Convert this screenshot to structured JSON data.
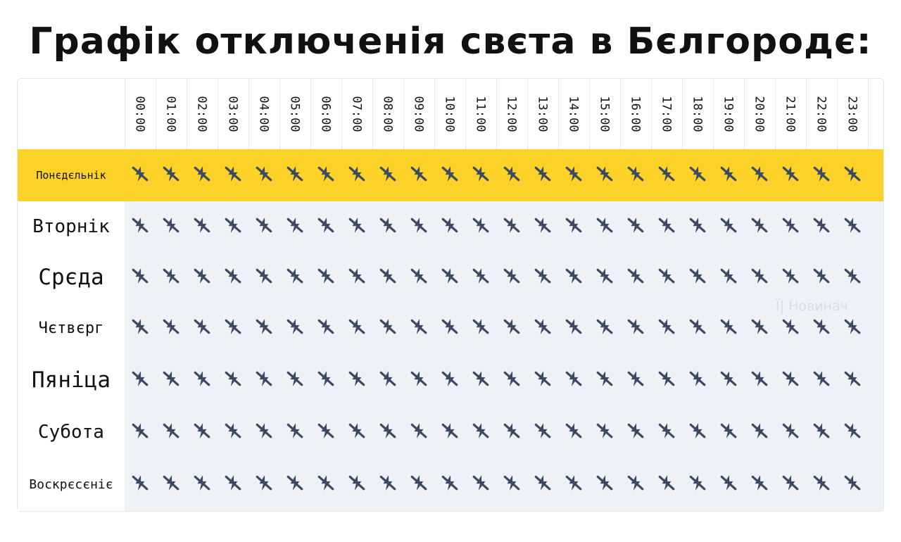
{
  "title": "Графік отключенія свєта в Бєлгородє:",
  "hours": [
    "00:00",
    "01:00",
    "02:00",
    "03:00",
    "04:00",
    "05:00",
    "06:00",
    "07:00",
    "08:00",
    "09:00",
    "10:00",
    "11:00",
    "12:00",
    "13:00",
    "14:00",
    "15:00",
    "16:00",
    "17:00",
    "18:00",
    "19:00",
    "20:00",
    "21:00",
    "22:00",
    "23:00"
  ],
  "days": [
    {
      "label": "Понєдєльнік",
      "state": "power-off"
    },
    {
      "label": "Вторнік",
      "state": "power-off"
    },
    {
      "label": "Срєда",
      "state": "power-off"
    },
    {
      "label": "Чєтвєрг",
      "state": "power-off"
    },
    {
      "label": "Пяніца",
      "state": "power-off"
    },
    {
      "label": "Субота",
      "state": "power-off"
    },
    {
      "label": "Воскрєсєніє",
      "state": "power-off"
    }
  ],
  "cell_icon": "no-power-icon",
  "watermark": "Ї| Новинач",
  "colors": {
    "highlight": "#fcd128",
    "cell_bg": "#eef1f6",
    "icon": "#3c4a63"
  }
}
